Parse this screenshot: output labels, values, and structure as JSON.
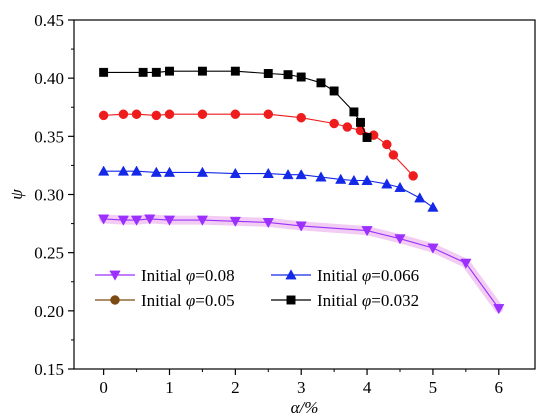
{
  "chart_data": {
    "type": "line",
    "xlabel": "α/%",
    "ylabel": "ψ",
    "xlim": [
      -0.45,
      6.55
    ],
    "ylim": [
      0.15,
      0.45
    ],
    "xticks": [
      0,
      1,
      2,
      3,
      4,
      5,
      6
    ],
    "yticks": [
      0.15,
      0.2,
      0.25,
      0.3,
      0.35,
      0.4,
      0.45
    ],
    "xtick_labels": [
      "0",
      "1",
      "2",
      "3",
      "4",
      "5",
      "6"
    ],
    "ytick_labels": [
      "0.15",
      "0.20",
      "0.25",
      "0.30",
      "0.35",
      "0.40",
      "0.45"
    ],
    "grid": false,
    "legend_position": "bottom-left",
    "series": [
      {
        "name": "Initial φ=0.08",
        "marker": "triangle-down",
        "color": "#9b30ff",
        "band_color": "#f2c6f2",
        "x": [
          0,
          0.3,
          0.5,
          0.7,
          1.0,
          1.5,
          2.0,
          2.5,
          3.0,
          4.0,
          4.5,
          5.0,
          5.5,
          6.0
        ],
        "y": [
          0.279,
          0.278,
          0.278,
          0.279,
          0.278,
          0.278,
          0.277,
          0.276,
          0.273,
          0.269,
          0.262,
          0.254,
          0.241,
          0.202
        ]
      },
      {
        "name": "Initial φ=0.066",
        "marker": "triangle-up",
        "color": "#1428e8",
        "x": [
          0,
          0.3,
          0.5,
          0.8,
          1.0,
          1.5,
          2.0,
          2.5,
          2.8,
          3.0,
          3.3,
          3.6,
          3.8,
          4.0,
          4.3,
          4.5,
          4.8,
          5.0
        ],
        "y": [
          0.32,
          0.32,
          0.32,
          0.319,
          0.319,
          0.319,
          0.318,
          0.318,
          0.317,
          0.317,
          0.315,
          0.313,
          0.312,
          0.312,
          0.309,
          0.306,
          0.297,
          0.289
        ]
      },
      {
        "name": "Initial φ=0.05",
        "marker": "circle",
        "color": "#ee1c1c",
        "legend_color": "#7a4a12",
        "x": [
          0,
          0.3,
          0.5,
          0.8,
          1.0,
          1.5,
          2.0,
          2.5,
          3.0,
          3.5,
          3.7,
          3.9,
          4.1,
          4.3,
          4.4,
          4.7
        ],
        "y": [
          0.368,
          0.369,
          0.369,
          0.368,
          0.369,
          0.369,
          0.369,
          0.369,
          0.366,
          0.361,
          0.358,
          0.355,
          0.351,
          0.343,
          0.334,
          0.316
        ]
      },
      {
        "name": "Initial φ=0.032",
        "marker": "square",
        "color": "#000000",
        "x": [
          0,
          0.6,
          0.8,
          1.0,
          1.5,
          2.0,
          2.5,
          2.8,
          3.0,
          3.3,
          3.5,
          3.8,
          3.9,
          4.0
        ],
        "y": [
          0.405,
          0.405,
          0.405,
          0.406,
          0.406,
          0.406,
          0.404,
          0.403,
          0.401,
          0.396,
          0.389,
          0.371,
          0.362,
          0.349
        ]
      }
    ]
  }
}
